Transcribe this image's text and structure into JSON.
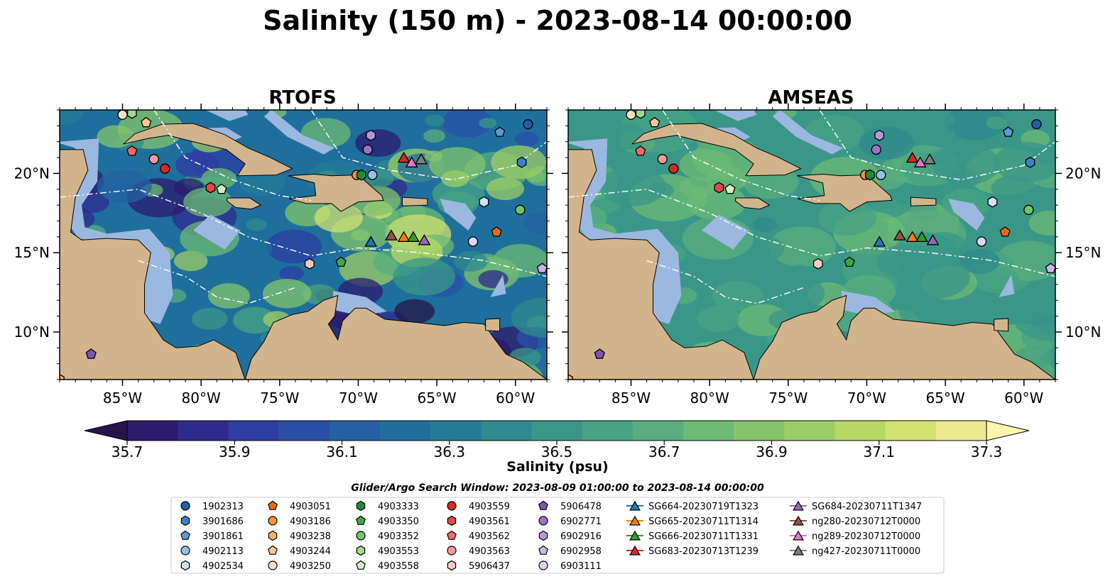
{
  "title": "Salinity (150 m) - 2023-08-14 00:00:00",
  "chart_data": {
    "type": "heatmap",
    "subtype": "map",
    "panels": [
      {
        "title": "RTOFS",
        "lon_ticks": [
          "85°W",
          "80°W",
          "75°W",
          "70°W",
          "65°W",
          "60°W"
        ],
        "lat_ticks_left": [
          "20°N",
          "15°N",
          "10°N"
        ]
      },
      {
        "title": "AMSEAS",
        "lon_ticks": [
          "85°W",
          "80°W",
          "75°W",
          "70°W",
          "65°W",
          "60°W"
        ],
        "lat_ticks_right": [
          "20°N",
          "15°N",
          "10°N"
        ]
      }
    ],
    "lon_range": [
      -89,
      -58
    ],
    "lat_range": [
      7,
      24
    ],
    "lon_tick_values": [
      -85,
      -80,
      -75,
      -70,
      -65,
      -60
    ],
    "lat_tick_values": [
      20,
      15,
      10
    ],
    "land_color": "#d2b48c",
    "shallow_color": "#9bb8e0",
    "colorbar": {
      "label": "Salinity (psu)",
      "ticks": [
        "35.7",
        "35.9",
        "36.1",
        "36.3",
        "36.5",
        "36.7",
        "36.9",
        "37.1",
        "37.3"
      ],
      "min": 35.7,
      "max": 37.3,
      "step": 0.1,
      "extend": "both",
      "colors": [
        "#2c1b6e",
        "#2f2a8e",
        "#2e3da3",
        "#2a4fa8",
        "#2460a3",
        "#1f6f9c",
        "#237c95",
        "#2f8a8e",
        "#3a9788",
        "#47a383",
        "#58ae7d",
        "#6cba74",
        "#83c46c",
        "#9dce66",
        "#b8d864",
        "#d2e270",
        "#ece98f"
      ],
      "under_color": "#271549",
      "over_color": "#fdf6b0"
    },
    "search_window": "Glider/Argo Search Window: 2023-08-09 01:00:00 to 2023-08-14 00:00:00",
    "legend": [
      {
        "label": "1902313",
        "marker": "circle",
        "color": "#1f5fa8"
      },
      {
        "label": "3901686",
        "marker": "hexagon",
        "color": "#3b82c4"
      },
      {
        "label": "3901861",
        "marker": "pentagon",
        "color": "#5b9bd5"
      },
      {
        "label": "4902113",
        "marker": "circle",
        "color": "#92c2e6"
      },
      {
        "label": "4902534",
        "marker": "hexagon",
        "color": "#cfe3f3"
      },
      {
        "label": "4903051",
        "marker": "pentagon",
        "color": "#e86a10"
      },
      {
        "label": "4903186",
        "marker": "circle",
        "color": "#f5913a"
      },
      {
        "label": "4903238",
        "marker": "hexagon",
        "color": "#f6b06a"
      },
      {
        "label": "4903244",
        "marker": "pentagon",
        "color": "#f8c894"
      },
      {
        "label": "4903250",
        "marker": "circle",
        "color": "#fbe0c3"
      },
      {
        "label": "4903333",
        "marker": "hexagon",
        "color": "#1e8a3a"
      },
      {
        "label": "4903350",
        "marker": "pentagon",
        "color": "#3ea64a"
      },
      {
        "label": "4903352",
        "marker": "circle",
        "color": "#6fc764"
      },
      {
        "label": "4903553",
        "marker": "hexagon",
        "color": "#9fda8f"
      },
      {
        "label": "4903558",
        "marker": "pentagon",
        "color": "#cdf1c0"
      },
      {
        "label": "4903559",
        "marker": "circle",
        "color": "#d42a24"
      },
      {
        "label": "4903561",
        "marker": "hexagon",
        "color": "#e2484a"
      },
      {
        "label": "4903562",
        "marker": "pentagon",
        "color": "#ef6a6c"
      },
      {
        "label": "4903563",
        "marker": "circle",
        "color": "#f5999a"
      },
      {
        "label": "5906437",
        "marker": "hexagon",
        "color": "#fbcac6"
      },
      {
        "label": "5906478",
        "marker": "pentagon",
        "color": "#7b55b0"
      },
      {
        "label": "6902771",
        "marker": "circle",
        "color": "#9a73c6"
      },
      {
        "label": "6902916",
        "marker": "hexagon",
        "color": "#b596da"
      },
      {
        "label": "6902958",
        "marker": "pentagon",
        "color": "#ccb4e8"
      },
      {
        "label": "6903111",
        "marker": "circle",
        "color": "#e3d3f4"
      },
      {
        "label": "SG664-20230719T1323",
        "marker": "triangle",
        "color": "#1f77b4"
      },
      {
        "label": "SG665-20230711T1314",
        "marker": "triangle",
        "color": "#ff7f0e"
      },
      {
        "label": "SG666-20230711T1331",
        "marker": "triangle",
        "color": "#2ca02c"
      },
      {
        "label": "SG683-20230713T1239",
        "marker": "triangle",
        "color": "#d62728"
      },
      {
        "label": "SG684-20230711T1347",
        "marker": "triangle",
        "color": "#9467bd"
      },
      {
        "label": "ng280-20230712T0000",
        "marker": "triangle",
        "color": "#8c564b"
      },
      {
        "label": "ng289-20230712T0000",
        "marker": "triangle",
        "color": "#e377c2"
      },
      {
        "label": "ng427-20230711T0000",
        "marker": "triangle",
        "color": "#7f7f7f"
      }
    ],
    "observations": [
      {
        "id": "1902313",
        "lon": -59.2,
        "lat": 23.1
      },
      {
        "id": "3901686",
        "lon": -59.6,
        "lat": 20.7
      },
      {
        "id": "3901861",
        "lon": -61.0,
        "lat": 22.6
      },
      {
        "id": "4902113",
        "lon": -69.1,
        "lat": 19.9
      },
      {
        "id": "4902534",
        "lon": -62.0,
        "lat": 18.2
      },
      {
        "id": "4903051",
        "lon": -61.2,
        "lat": 16.3
      },
      {
        "id": "4903186",
        "lon": -70.1,
        "lat": 19.9
      },
      {
        "id": "4903238",
        "lon": -89.0,
        "lat": 7.0
      },
      {
        "id": "4903244",
        "lon": -83.5,
        "lat": 23.2
      },
      {
        "id": "4903250",
        "lon": -85.0,
        "lat": 23.7
      },
      {
        "id": "4903333",
        "lon": -69.8,
        "lat": 19.9
      },
      {
        "id": "4903350",
        "lon": -71.1,
        "lat": 14.4
      },
      {
        "id": "4903352",
        "lon": -59.7,
        "lat": 17.7
      },
      {
        "id": "4903553",
        "lon": -84.4,
        "lat": 23.8
      },
      {
        "id": "4903558",
        "lon": -78.7,
        "lat": 19.0
      },
      {
        "id": "4903559",
        "lon": -82.3,
        "lat": 20.3
      },
      {
        "id": "4903561",
        "lon": -79.4,
        "lat": 19.1
      },
      {
        "id": "4903562",
        "lon": -84.4,
        "lat": 21.4
      },
      {
        "id": "4903563",
        "lon": -83.0,
        "lat": 20.9
      },
      {
        "id": "5906437",
        "lon": -73.1,
        "lat": 14.3
      },
      {
        "id": "5906478",
        "lon": -87.0,
        "lat": 8.6
      },
      {
        "id": "6902771",
        "lon": -69.4,
        "lat": 21.5
      },
      {
        "id": "6902916",
        "lon": -69.2,
        "lat": 22.4
      },
      {
        "id": "6902958",
        "lon": -58.3,
        "lat": 14.0
      },
      {
        "id": "6903111",
        "lon": -62.7,
        "lat": 15.7
      }
    ],
    "gliders": [
      {
        "id": "SG664-20230719T1323",
        "lon": -69.2,
        "lat": 15.7
      },
      {
        "id": "SG665-20230711T1314",
        "lon": -67.1,
        "lat": 16.0
      },
      {
        "id": "SG666-20230711T1331",
        "lon": -66.5,
        "lat": 16.0
      },
      {
        "id": "SG683-20230713T1239",
        "lon": -67.1,
        "lat": 21.0
      },
      {
        "id": "SG684-20230711T1347",
        "lon": -65.8,
        "lat": 15.8
      },
      {
        "id": "ng280-20230712T0000",
        "lon": -67.9,
        "lat": 16.1
      },
      {
        "id": "ng289-20230712T0000",
        "lon": -66.6,
        "lat": 20.7
      },
      {
        "id": "ng427-20230711T0000",
        "lon": -66.0,
        "lat": 20.9
      }
    ]
  }
}
